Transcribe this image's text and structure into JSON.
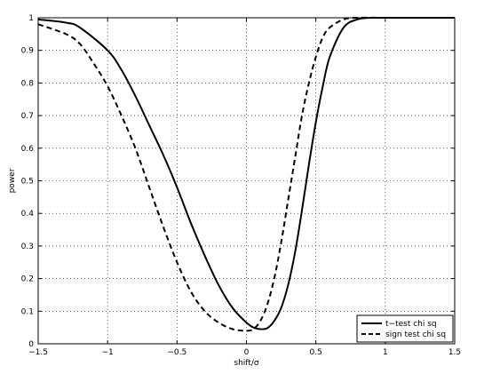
{
  "chart_data": {
    "type": "line",
    "title": "",
    "xlabel": "shift/σ",
    "ylabel": "power",
    "xlim": [
      -1.5,
      1.5
    ],
    "ylim": [
      0,
      1
    ],
    "grid": true,
    "legend_position": "bottom-right",
    "x_ticks": [
      -1.5,
      -1,
      -0.5,
      0,
      0.5,
      1,
      1.5
    ],
    "x_tick_labels": [
      "−1.5",
      "−1",
      "−0.5",
      "0",
      "0.5",
      "1",
      "1.5"
    ],
    "y_ticks": [
      0,
      0.1,
      0.2,
      0.3,
      0.4,
      0.5,
      0.6,
      0.7,
      0.8,
      0.9,
      1
    ],
    "y_tick_labels": [
      "0",
      "0.1",
      "0.2",
      "0.3",
      "0.4",
      "0.5",
      "0.6",
      "0.7",
      "0.8",
      "0.9",
      "1"
    ],
    "series": [
      {
        "name": "t−test chi sq",
        "style": "solid",
        "color": "#000000",
        "x": [
          -1.5,
          -1.3,
          -1.2,
          -1.0,
          -0.9,
          -0.8,
          -0.7,
          -0.6,
          -0.5,
          -0.4,
          -0.3,
          -0.2,
          -0.1,
          0.0,
          0.05,
          0.1,
          0.15,
          0.2,
          0.25,
          0.3,
          0.35,
          0.4,
          0.45,
          0.5,
          0.55,
          0.6,
          0.7,
          0.8,
          0.9,
          1.0,
          1.5
        ],
        "y": [
          0.995,
          0.985,
          0.97,
          0.9,
          0.84,
          0.76,
          0.67,
          0.58,
          0.48,
          0.37,
          0.27,
          0.18,
          0.11,
          0.065,
          0.05,
          0.045,
          0.048,
          0.07,
          0.11,
          0.18,
          0.28,
          0.41,
          0.55,
          0.68,
          0.79,
          0.88,
          0.97,
          0.995,
          1.0,
          1.0,
          1.0
        ]
      },
      {
        "name": "sign test chi sq",
        "style": "dashed",
        "color": "#000000",
        "x": [
          -1.5,
          -1.3,
          -1.2,
          -1.1,
          -1.0,
          -0.9,
          -0.8,
          -0.7,
          -0.6,
          -0.5,
          -0.4,
          -0.3,
          -0.2,
          -0.1,
          0.0,
          0.05,
          0.1,
          0.15,
          0.2,
          0.25,
          0.3,
          0.35,
          0.4,
          0.45,
          0.5,
          0.55,
          0.6,
          0.7,
          0.8,
          1.0,
          1.5
        ],
        "y": [
          0.98,
          0.95,
          0.92,
          0.86,
          0.79,
          0.7,
          0.6,
          0.48,
          0.36,
          0.25,
          0.16,
          0.1,
          0.065,
          0.045,
          0.04,
          0.045,
          0.07,
          0.12,
          0.2,
          0.31,
          0.44,
          0.57,
          0.7,
          0.8,
          0.88,
          0.94,
          0.97,
          0.995,
          1.0,
          1.0,
          1.0
        ]
      }
    ]
  }
}
